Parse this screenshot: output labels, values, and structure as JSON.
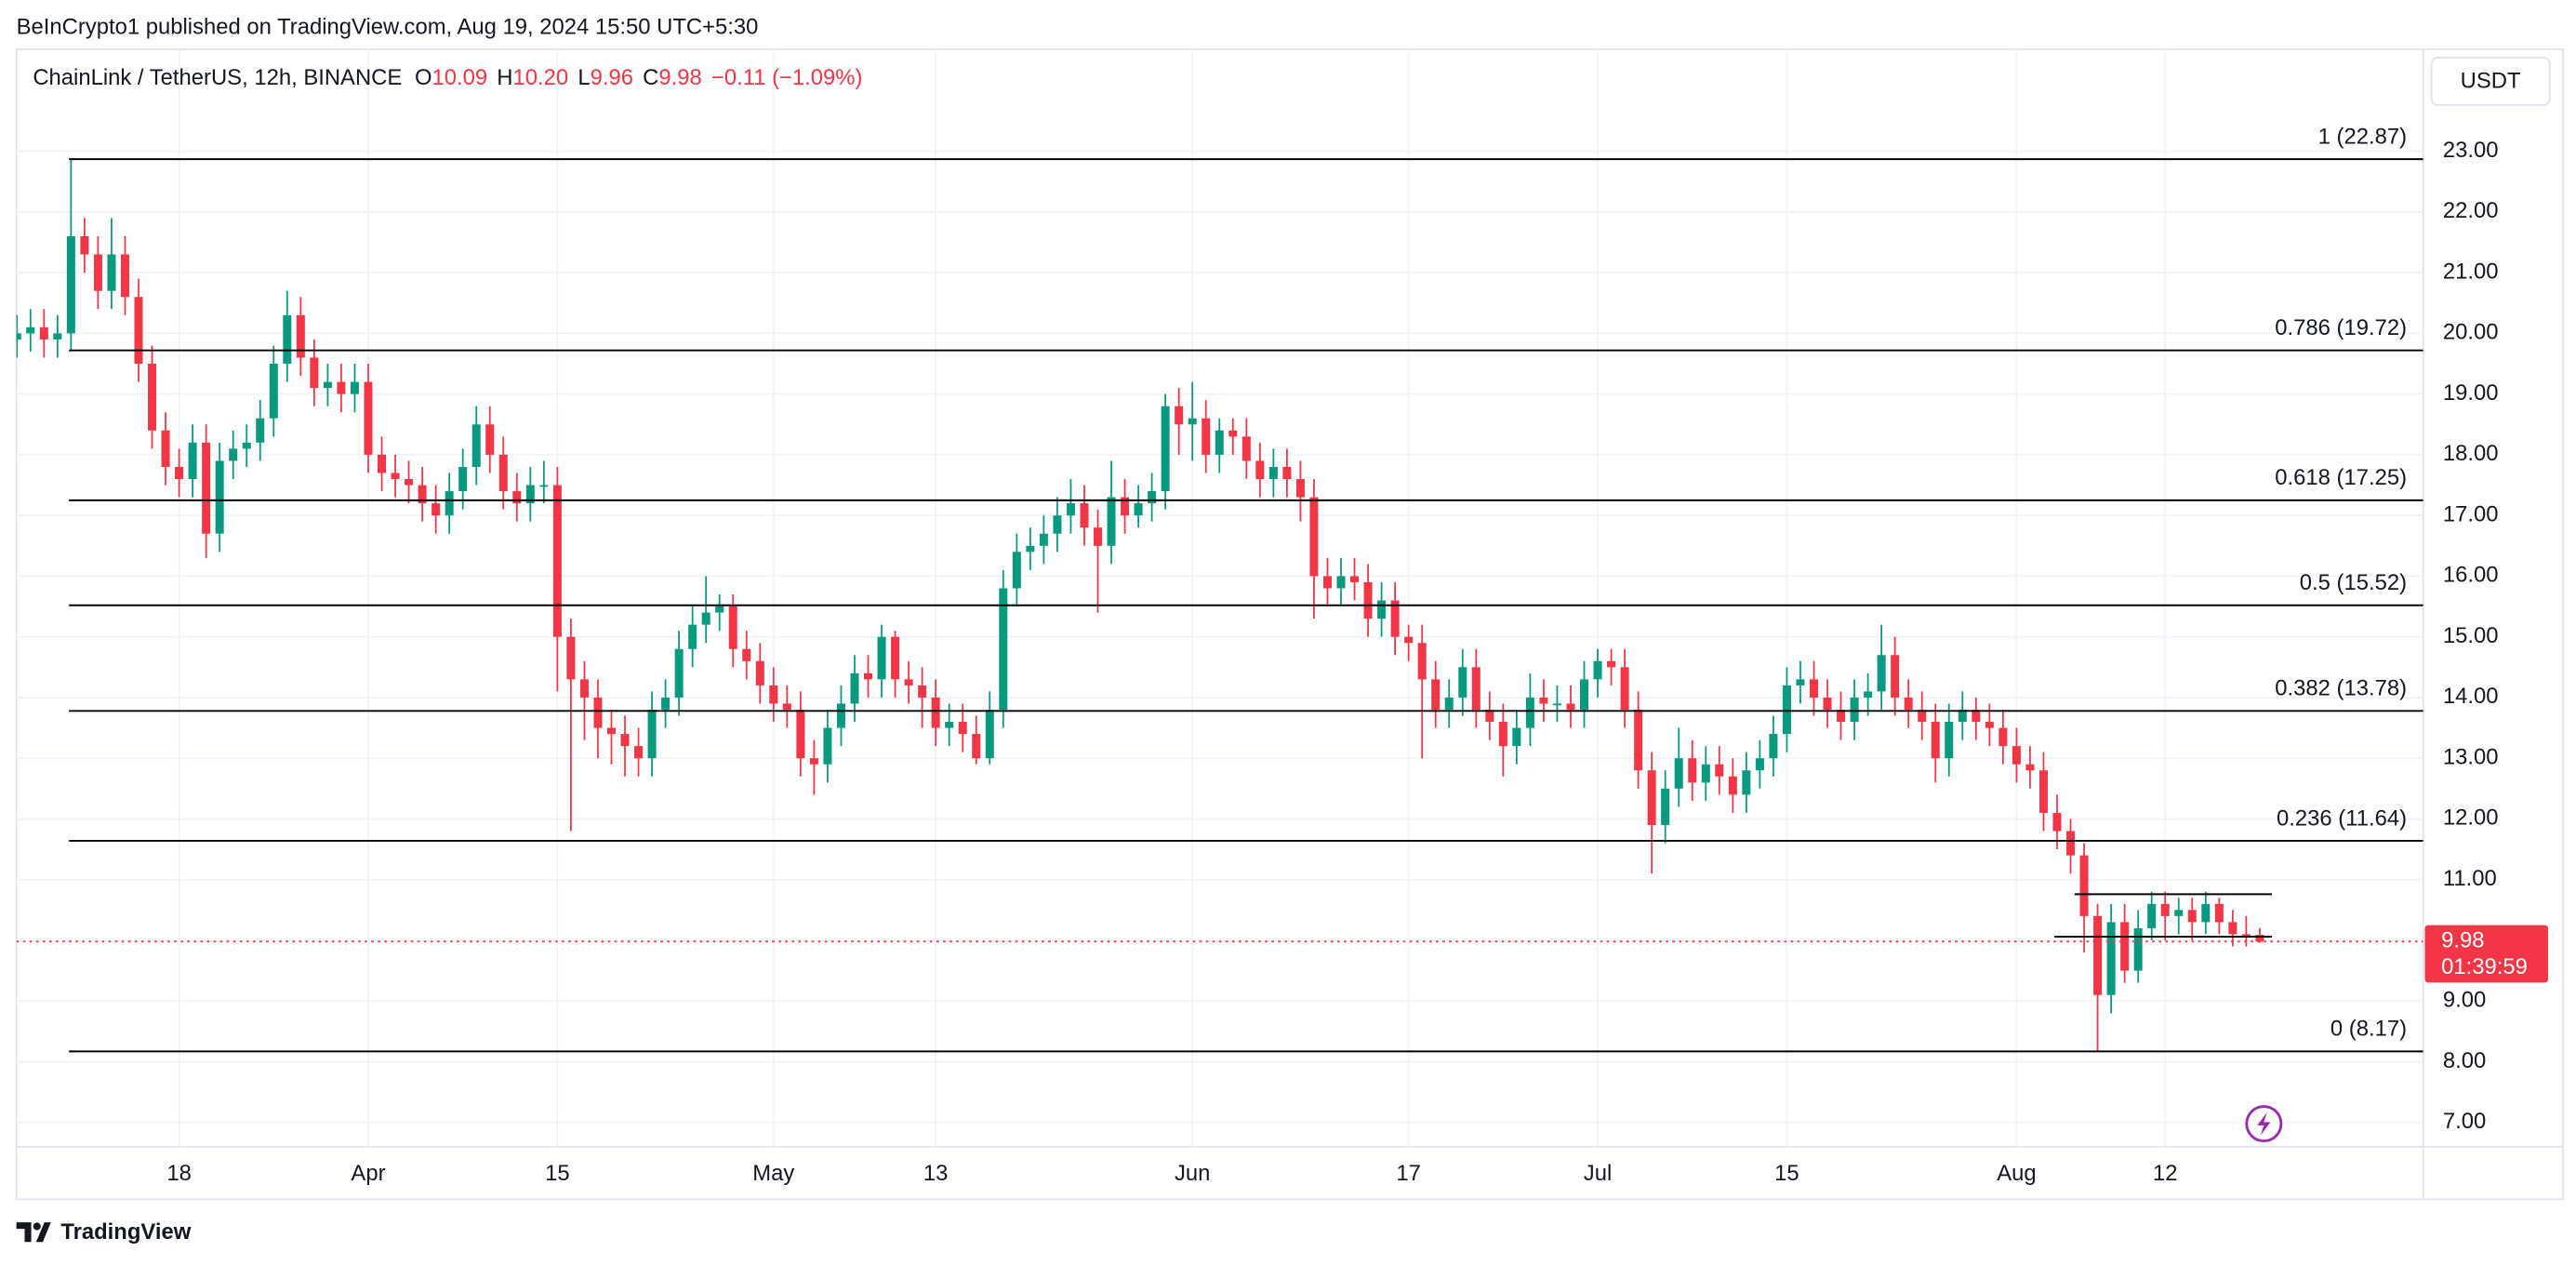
{
  "header": {
    "published": "BeInCrypto1 published on TradingView.com, Aug 19, 2024 15:50 UTC+5:30"
  },
  "legend": {
    "symbol": "ChainLink / TetherUS, 12h, BINANCE",
    "o": "O",
    "open": "10.09",
    "h": "H",
    "high": "10.20",
    "l": "L",
    "low": "9.96",
    "c": "C",
    "close": "9.98",
    "change": "−0.11 (−1.09%)"
  },
  "currency_button": "USDT",
  "countdown": "01:39:59",
  "footer": {
    "logo_text": "TradingView"
  },
  "chart_data": {
    "type": "candlestick",
    "up_color": "#089981",
    "down_color": "#f23645",
    "grid": true,
    "xlim": [
      4.96,
      183.1
    ],
    "xticks": [
      {
        "value": 17,
        "label": "18"
      },
      {
        "value": 31,
        "label": "Apr"
      },
      {
        "value": 45,
        "label": "15"
      },
      {
        "value": 61,
        "label": "May"
      },
      {
        "value": 73,
        "label": "13"
      },
      {
        "value": 92,
        "label": "Jun"
      },
      {
        "value": 108,
        "label": "17"
      },
      {
        "value": 122,
        "label": "Jul"
      },
      {
        "value": 136,
        "label": "15"
      },
      {
        "value": 153,
        "label": "Aug"
      },
      {
        "value": 164,
        "label": "12"
      }
    ],
    "ylim": [
      6.6,
      24.68
    ],
    "yticks": [
      {
        "value": 7,
        "label": "7.00"
      },
      {
        "value": 8,
        "label": "8.00"
      },
      {
        "value": 9,
        "label": "9.00"
      },
      {
        "value": 10,
        "label": "10.00"
      },
      {
        "value": 11,
        "label": "11.00"
      },
      {
        "value": 12,
        "label": "12.00"
      },
      {
        "value": 13,
        "label": "13.00"
      },
      {
        "value": 14,
        "label": "14.00"
      },
      {
        "value": 15,
        "label": "15.00"
      },
      {
        "value": 16,
        "label": "16.00"
      },
      {
        "value": 17,
        "label": "17.00"
      },
      {
        "value": 18,
        "label": "18.00"
      },
      {
        "value": 19,
        "label": "19.00"
      },
      {
        "value": 20,
        "label": "20.00"
      },
      {
        "value": 21,
        "label": "21.00"
      },
      {
        "value": 22,
        "label": "22.00"
      },
      {
        "value": 23,
        "label": "23.00"
      }
    ],
    "fib_levels": [
      {
        "label": "1 (22.87)",
        "value": 22.87
      },
      {
        "label": "0.786 (19.72)",
        "value": 19.72
      },
      {
        "label": "0.618 (17.25)",
        "value": 17.25
      },
      {
        "label": "0.5 (15.52)",
        "value": 15.52
      },
      {
        "label": "0.382 (13.78)",
        "value": 13.78
      },
      {
        "label": "0.236 (11.64)",
        "value": 11.64
      },
      {
        "label": "0 (8.17)",
        "value": 8.17
      }
    ],
    "range_lines": [
      {
        "value": 10.76,
        "from": 157.3,
        "to": 171.9
      },
      {
        "value": 10.06,
        "from": 155.8,
        "to": 171.9
      }
    ],
    "x": [
      5,
      6,
      7,
      8,
      9,
      10,
      11,
      12,
      13,
      14,
      15,
      16,
      17,
      18,
      19,
      20,
      21,
      22,
      23,
      24,
      25,
      26,
      27,
      28,
      29,
      30,
      31,
      32,
      33,
      34,
      35,
      36,
      37,
      38,
      39,
      40,
      41,
      42,
      43,
      44,
      45,
      46,
      47,
      48,
      49,
      50,
      51,
      52,
      53,
      54,
      55,
      56,
      57,
      58,
      59,
      60,
      61,
      62,
      63,
      64,
      65,
      66,
      67,
      68,
      69,
      70,
      71,
      72,
      73,
      74,
      75,
      76,
      77,
      78,
      79,
      80,
      81,
      82,
      83,
      84,
      85,
      86,
      87,
      88,
      89,
      90,
      91,
      92,
      93,
      94,
      95,
      96,
      97,
      98,
      99,
      100,
      101,
      102,
      103,
      104,
      105,
      106,
      107,
      108,
      109,
      110,
      111,
      112,
      113,
      114,
      115,
      116,
      117,
      118,
      119,
      120,
      121,
      122,
      123,
      124,
      125,
      126,
      127,
      128,
      129,
      130,
      131,
      132,
      133,
      134,
      135,
      136,
      137,
      138,
      139,
      140,
      141,
      142,
      143,
      144,
      145,
      146,
      147,
      148,
      149,
      150,
      151,
      152,
      153,
      154,
      155,
      156,
      157,
      158,
      159,
      160,
      161,
      162,
      163,
      164,
      165,
      166,
      167,
      168,
      169,
      170,
      171
    ],
    "open": [
      19.9,
      20.0,
      20.1,
      19.9,
      20.0,
      21.6,
      21.3,
      20.7,
      21.3,
      20.6,
      19.5,
      18.4,
      17.8,
      17.6,
      18.2,
      16.7,
      17.9,
      18.1,
      18.2,
      18.6,
      19.5,
      20.3,
      19.6,
      19.1,
      19.2,
      19.0,
      19.2,
      18.0,
      17.7,
      17.6,
      17.5,
      17.2,
      17.0,
      17.4,
      17.8,
      18.5,
      18.0,
      17.4,
      17.2,
      17.5,
      17.5,
      15.0,
      14.3,
      14.0,
      13.5,
      13.4,
      13.2,
      13.0,
      13.8,
      14.0,
      14.8,
      15.2,
      15.4,
      15.5,
      14.8,
      14.6,
      14.2,
      13.9,
      13.8,
      13.0,
      12.9,
      13.5,
      13.9,
      14.4,
      14.3,
      15.0,
      14.3,
      14.2,
      14.0,
      13.5,
      13.6,
      13.4,
      13.0,
      13.8,
      15.8,
      16.4,
      16.5,
      16.7,
      17.0,
      17.2,
      16.8,
      16.5,
      17.3,
      17.0,
      17.2,
      17.4,
      18.8,
      18.5,
      18.6,
      18.0,
      18.4,
      18.3,
      17.9,
      17.6,
      17.8,
      17.6,
      17.3,
      16.0,
      15.8,
      16.0,
      15.9,
      15.3,
      15.6,
      15.0,
      14.9,
      14.3,
      13.8,
      14.0,
      14.5,
      13.8,
      13.6,
      13.2,
      13.5,
      14.0,
      13.9,
      13.9,
      13.8,
      14.3,
      14.6,
      14.5,
      13.8,
      12.8,
      11.9,
      12.5,
      13.0,
      12.6,
      12.9,
      12.7,
      12.4,
      12.8,
      13.0,
      13.4,
      14.2,
      14.3,
      14.0,
      13.8,
      13.6,
      14.0,
      14.1,
      14.7,
      14.0,
      13.8,
      13.6,
      13.0,
      13.6,
      13.8,
      13.6,
      13.5,
      13.2,
      12.9,
      12.8,
      12.1,
      11.8,
      11.4,
      10.4,
      9.1,
      10.3,
      9.5,
      10.2,
      10.6,
      10.4,
      10.5,
      10.3,
      10.6,
      10.3,
      10.1,
      10.09
    ],
    "high": [
      20.3,
      20.4,
      20.4,
      20.3,
      22.87,
      21.9,
      21.6,
      21.9,
      21.6,
      20.9,
      19.8,
      18.7,
      18.1,
      18.5,
      18.5,
      18.2,
      18.4,
      18.5,
      18.9,
      19.8,
      20.7,
      20.6,
      19.9,
      19.5,
      19.5,
      19.5,
      19.5,
      18.3,
      18.0,
      17.9,
      17.8,
      17.5,
      17.7,
      18.1,
      18.8,
      18.8,
      18.3,
      17.7,
      17.8,
      17.9,
      17.8,
      15.3,
      14.6,
      14.3,
      13.8,
      13.7,
      13.5,
      14.1,
      14.3,
      15.1,
      15.5,
      16.0,
      15.7,
      15.7,
      15.1,
      14.9,
      14.5,
      14.2,
      14.1,
      13.3,
      13.8,
      14.2,
      14.7,
      14.7,
      15.2,
      15.1,
      14.6,
      14.5,
      14.3,
      13.9,
      13.9,
      13.7,
      14.1,
      16.1,
      16.7,
      16.8,
      17.0,
      17.3,
      17.6,
      17.5,
      17.1,
      17.9,
      17.6,
      17.5,
      17.7,
      19.0,
      19.1,
      19.2,
      18.9,
      18.6,
      18.6,
      18.6,
      18.2,
      18.1,
      18.1,
      17.9,
      17.6,
      16.3,
      16.3,
      16.3,
      16.2,
      15.9,
      15.9,
      15.2,
      15.2,
      14.6,
      14.3,
      14.8,
      14.8,
      14.1,
      13.9,
      13.8,
      14.4,
      14.3,
      14.2,
      14.2,
      14.6,
      14.8,
      14.8,
      14.8,
      14.1,
      13.1,
      12.8,
      13.5,
      13.3,
      13.2,
      13.2,
      13.0,
      13.1,
      13.3,
      13.7,
      14.5,
      14.6,
      14.6,
      14.3,
      14.1,
      14.3,
      14.4,
      15.2,
      15.0,
      14.3,
      14.1,
      13.9,
      13.9,
      14.1,
      14.0,
      13.9,
      13.8,
      13.5,
      13.2,
      13.1,
      12.4,
      12.0,
      11.6,
      10.6,
      10.6,
      10.6,
      10.5,
      10.8,
      10.8,
      10.7,
      10.7,
      10.8,
      10.7,
      10.5,
      10.4,
      10.2
    ],
    "low": [
      19.6,
      19.7,
      19.6,
      19.6,
      19.7,
      21.0,
      20.4,
      20.4,
      20.3,
      19.2,
      18.1,
      17.5,
      17.3,
      17.3,
      16.3,
      16.4,
      17.6,
      17.8,
      17.9,
      18.3,
      19.2,
      19.3,
      18.8,
      18.8,
      18.7,
      18.7,
      17.7,
      17.4,
      17.3,
      17.2,
      16.9,
      16.7,
      16.7,
      17.1,
      17.5,
      17.7,
      17.1,
      16.9,
      16.9,
      17.2,
      14.1,
      11.8,
      13.3,
      13.0,
      12.9,
      12.7,
      12.7,
      12.7,
      13.5,
      13.7,
      14.5,
      14.9,
      15.1,
      14.5,
      14.3,
      13.9,
      13.6,
      13.5,
      12.7,
      12.4,
      12.6,
      13.2,
      13.6,
      14.0,
      14.0,
      14.0,
      13.9,
      13.5,
      13.2,
      13.2,
      13.1,
      12.9,
      12.9,
      13.5,
      15.5,
      16.1,
      16.2,
      16.4,
      16.7,
      16.5,
      15.4,
      16.2,
      16.7,
      16.8,
      16.9,
      17.1,
      18.0,
      17.9,
      17.7,
      17.7,
      18.0,
      17.6,
      17.3,
      17.3,
      17.3,
      16.9,
      15.3,
      15.5,
      15.5,
      15.6,
      15.0,
      15.0,
      14.7,
      14.6,
      13.0,
      13.5,
      13.5,
      13.7,
      13.5,
      13.3,
      12.7,
      12.9,
      13.2,
      13.6,
      13.6,
      13.5,
      13.5,
      14.0,
      14.2,
      13.5,
      12.5,
      11.1,
      11.6,
      12.2,
      12.3,
      12.3,
      12.4,
      12.1,
      12.1,
      12.5,
      12.7,
      13.1,
      13.9,
      13.7,
      13.5,
      13.3,
      13.3,
      13.7,
      13.8,
      13.7,
      13.5,
      13.3,
      12.6,
      12.7,
      13.3,
      13.3,
      13.2,
      12.9,
      12.6,
      12.5,
      11.8,
      11.5,
      11.1,
      9.8,
      8.17,
      8.8,
      9.3,
      9.3,
      10.0,
      10.0,
      10.1,
      10.0,
      10.1,
      10.1,
      9.9,
      9.9,
      9.96
    ],
    "close": [
      20.0,
      20.1,
      19.9,
      20.0,
      21.6,
      21.3,
      20.7,
      21.3,
      20.6,
      19.5,
      18.4,
      17.8,
      17.6,
      18.2,
      16.7,
      17.9,
      18.1,
      18.2,
      18.6,
      19.5,
      20.3,
      19.6,
      19.1,
      19.2,
      19.0,
      19.2,
      18.0,
      17.7,
      17.6,
      17.5,
      17.2,
      17.0,
      17.4,
      17.8,
      18.5,
      18.0,
      17.4,
      17.2,
      17.5,
      17.5,
      15.0,
      14.3,
      14.0,
      13.5,
      13.4,
      13.2,
      13.0,
      13.8,
      14.0,
      14.8,
      15.2,
      15.4,
      15.5,
      14.8,
      14.6,
      14.2,
      13.9,
      13.8,
      13.0,
      12.9,
      13.5,
      13.9,
      14.4,
      14.3,
      15.0,
      14.3,
      14.2,
      14.0,
      13.5,
      13.6,
      13.4,
      13.0,
      13.8,
      15.8,
      16.4,
      16.5,
      16.7,
      17.0,
      17.2,
      16.8,
      16.5,
      17.3,
      17.0,
      17.2,
      17.4,
      18.8,
      18.5,
      18.6,
      18.0,
      18.4,
      18.3,
      17.9,
      17.6,
      17.8,
      17.6,
      17.3,
      16.0,
      15.8,
      16.0,
      15.9,
      15.3,
      15.6,
      15.0,
      14.9,
      14.3,
      13.8,
      14.0,
      14.5,
      13.8,
      13.6,
      13.2,
      13.5,
      14.0,
      13.9,
      13.9,
      13.8,
      14.3,
      14.6,
      14.5,
      13.8,
      12.8,
      11.9,
      12.5,
      13.0,
      12.6,
      12.9,
      12.7,
      12.4,
      12.8,
      13.0,
      13.4,
      14.2,
      14.3,
      14.0,
      13.8,
      13.6,
      14.0,
      14.1,
      14.7,
      14.0,
      13.8,
      13.6,
      13.0,
      13.6,
      13.8,
      13.6,
      13.5,
      13.2,
      12.9,
      12.8,
      12.1,
      11.8,
      11.4,
      10.4,
      9.1,
      10.3,
      9.5,
      10.2,
      10.6,
      10.4,
      10.5,
      10.3,
      10.6,
      10.3,
      10.1,
      10.09,
      9.98
    ]
  }
}
